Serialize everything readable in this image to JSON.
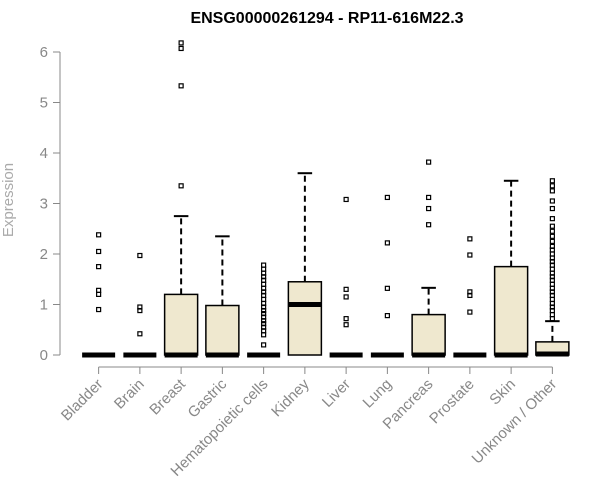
{
  "chart_data": {
    "type": "boxplot",
    "title": "ENSG00000261294 - RP11-616M22.3",
    "xlabel": "",
    "ylabel": "Expression",
    "ylim": [
      0,
      6.2
    ],
    "yticks": [
      0,
      1,
      2,
      3,
      4,
      5,
      6
    ],
    "grid": false,
    "colors": {
      "box_fill": "#efe8cf",
      "stroke": "#000000",
      "axis": "#888888"
    },
    "categories": [
      "Bladder",
      "Brain",
      "Breast",
      "Gastric",
      "Hematopoietic cells",
      "Kidney",
      "Liver",
      "Lung",
      "Pancreas",
      "Prostate",
      "Skin",
      "Unknown / Other"
    ],
    "boxes": [
      {
        "name": "Bladder",
        "min": 0,
        "q1": 0,
        "median": 0,
        "q3": 0,
        "max": 0,
        "outliers": [
          0.9,
          1.2,
          1.28,
          1.75,
          2.05,
          2.38
        ]
      },
      {
        "name": "Brain",
        "min": 0,
        "q1": 0,
        "median": 0,
        "q3": 0,
        "max": 0,
        "outliers": [
          0.42,
          0.88,
          0.95,
          1.97
        ]
      },
      {
        "name": "Breast",
        "min": 0,
        "q1": 0,
        "median": 0,
        "q3": 1.2,
        "max": 2.75,
        "outliers": [
          3.35,
          5.33,
          6.07,
          6.18
        ]
      },
      {
        "name": "Gastric",
        "min": 0,
        "q1": 0,
        "median": 0,
        "q3": 0.98,
        "max": 2.35,
        "outliers": []
      },
      {
        "name": "Hematopoietic cells",
        "min": 0,
        "q1": 0,
        "median": 0,
        "q3": 0,
        "max": 0,
        "outliers": [
          0.2,
          0.4,
          0.48,
          0.55,
          0.62,
          0.68,
          0.75,
          0.82,
          0.88,
          0.95,
          1.02,
          1.1,
          1.18,
          1.25,
          1.32,
          1.4,
          1.48,
          1.55,
          1.62,
          1.7,
          1.78
        ]
      },
      {
        "name": "Kidney",
        "min": 0,
        "q1": 0,
        "median": 1.0,
        "q3": 1.45,
        "max": 3.6,
        "outliers": []
      },
      {
        "name": "Liver",
        "min": 0,
        "q1": 0,
        "median": 0,
        "q3": 0,
        "max": 0,
        "outliers": [
          0.6,
          0.72,
          1.15,
          1.3,
          3.08
        ]
      },
      {
        "name": "Lung",
        "min": 0,
        "q1": 0,
        "median": 0,
        "q3": 0,
        "max": 0,
        "outliers": [
          0.78,
          1.32,
          2.22,
          3.12
        ]
      },
      {
        "name": "Pancreas",
        "min": 0,
        "q1": 0,
        "median": 0,
        "q3": 0.8,
        "max": 1.33,
        "outliers": [
          2.58,
          2.9,
          3.12,
          3.82
        ]
      },
      {
        "name": "Prostate",
        "min": 0,
        "q1": 0,
        "median": 0,
        "q3": 0,
        "max": 0,
        "outliers": [
          0.85,
          1.18,
          1.25,
          1.98,
          2.3
        ]
      },
      {
        "name": "Skin",
        "min": 0,
        "q1": 0,
        "median": 0,
        "q3": 1.75,
        "max": 3.45,
        "outliers": []
      },
      {
        "name": "Unknown / Other",
        "min": 0,
        "q1": 0,
        "median": 0.02,
        "q3": 0.26,
        "max": 0.67,
        "outliers": [
          0.72,
          0.8,
          0.88,
          0.95,
          1.02,
          1.1,
          1.18,
          1.25,
          1.32,
          1.4,
          1.48,
          1.55,
          1.62,
          1.7,
          1.78,
          1.85,
          1.92,
          2.0,
          2.08,
          2.15,
          2.25,
          2.35,
          2.45,
          2.55,
          2.7,
          2.9,
          3.05,
          3.25,
          3.35,
          3.45
        ]
      }
    ]
  }
}
